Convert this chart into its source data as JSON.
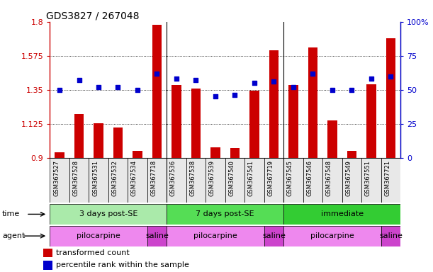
{
  "title": "GDS3827 / 267048",
  "samples": [
    "GSM367527",
    "GSM367528",
    "GSM367531",
    "GSM367532",
    "GSM367534",
    "GSM367718",
    "GSM367536",
    "GSM367538",
    "GSM367539",
    "GSM367540",
    "GSM367541",
    "GSM367719",
    "GSM367545",
    "GSM367546",
    "GSM367548",
    "GSM367549",
    "GSM367551",
    "GSM367721"
  ],
  "transformed_counts": [
    0.935,
    1.19,
    1.13,
    1.1,
    0.945,
    1.78,
    1.38,
    1.36,
    0.97,
    0.965,
    1.345,
    1.61,
    1.38,
    1.63,
    1.145,
    0.945,
    1.385,
    1.69
  ],
  "percentile_ranks": [
    50,
    57,
    52,
    52,
    50,
    62,
    58,
    57,
    45,
    46,
    55,
    56,
    52,
    62,
    50,
    50,
    58,
    60
  ],
  "ylim_left": [
    0.9,
    1.8
  ],
  "ylim_right": [
    0,
    100
  ],
  "yticks_left": [
    0.9,
    1.125,
    1.35,
    1.575,
    1.8
  ],
  "yticks_right": [
    0,
    25,
    50,
    75,
    100
  ],
  "bar_color": "#cc0000",
  "dot_color": "#0000cc",
  "bar_bottom": 0.9,
  "groups_time": [
    {
      "label": "3 days post-SE",
      "start": 0,
      "end": 6,
      "color": "#aaeaaa"
    },
    {
      "label": "7 days post-SE",
      "start": 6,
      "end": 12,
      "color": "#55dd55"
    },
    {
      "label": "immediate",
      "start": 12,
      "end": 18,
      "color": "#33cc33"
    }
  ],
  "groups_agent": [
    {
      "label": "pilocarpine",
      "start": 0,
      "end": 5,
      "color": "#ee88ee"
    },
    {
      "label": "saline",
      "start": 5,
      "end": 6,
      "color": "#cc44cc"
    },
    {
      "label": "pilocarpine",
      "start": 6,
      "end": 11,
      "color": "#ee88ee"
    },
    {
      "label": "saline",
      "start": 11,
      "end": 12,
      "color": "#cc44cc"
    },
    {
      "label": "pilocarpine",
      "start": 12,
      "end": 17,
      "color": "#ee88ee"
    },
    {
      "label": "saline",
      "start": 17,
      "end": 18,
      "color": "#cc44cc"
    }
  ],
  "legend_items": [
    {
      "label": "transformed count",
      "color": "#cc0000"
    },
    {
      "label": "percentile rank within the sample",
      "color": "#0000cc"
    }
  ],
  "group_separators": [
    5.5,
    11.5
  ]
}
